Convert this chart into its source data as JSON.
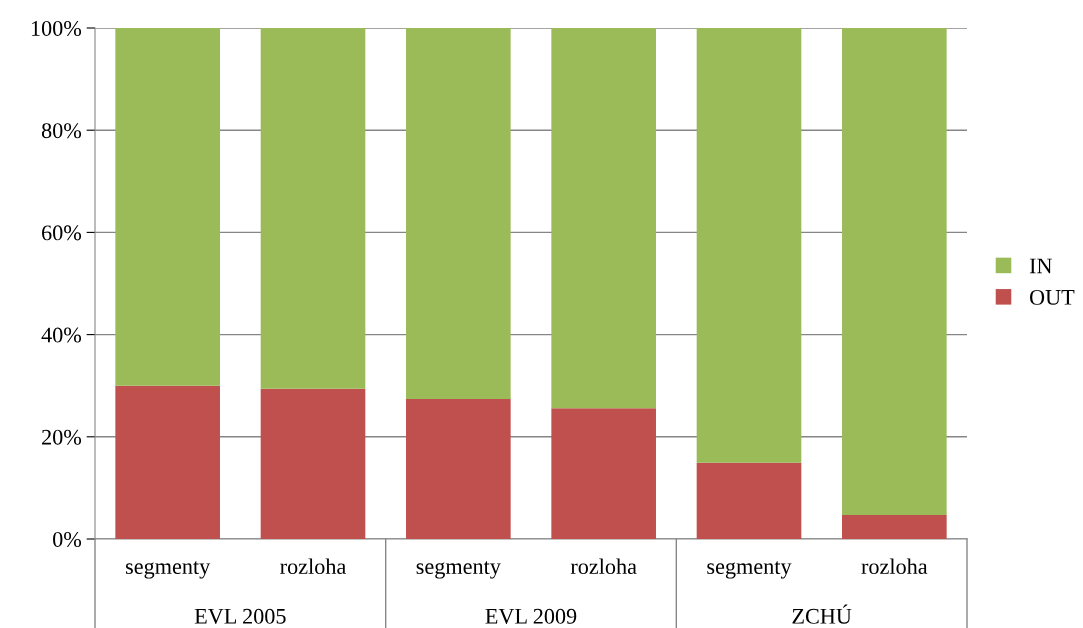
{
  "chart_data": {
    "type": "bar",
    "stacked": true,
    "categories": [
      "segmenty",
      "rozloha",
      "segmenty",
      "rozloha",
      "segmenty",
      "rozloha"
    ],
    "series": [
      {
        "name": "OUT",
        "color": "#c0504d",
        "values": [
          30,
          29.4,
          27.4,
          25.6,
          14.9,
          4.7
        ]
      },
      {
        "name": "IN",
        "color": "#9bbb59",
        "values": [
          70,
          70.6,
          72.6,
          74.4,
          85.1,
          95.3
        ]
      }
    ],
    "ylim": [
      0,
      100
    ],
    "yticks": [
      {
        "value": 0,
        "label": "0%"
      },
      {
        "value": 20,
        "label": "20%"
      },
      {
        "value": 40,
        "label": "40%"
      },
      {
        "value": 60,
        "label": "60%"
      },
      {
        "value": 80,
        "label": "80%"
      },
      {
        "value": 100,
        "label": "100%"
      }
    ],
    "grid": "y",
    "legend": "right",
    "annotations": [
      "EVL 2005",
      "EVL 2009",
      "ZCHÚ"
    ]
  }
}
